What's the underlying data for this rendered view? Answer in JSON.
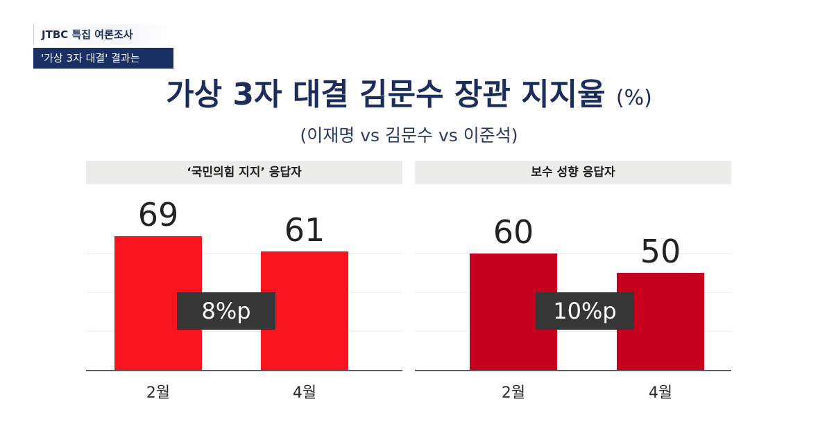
{
  "tag": {
    "line1": "JTBC 특집 여론조사",
    "line2": "'가상 3자 대결' 결과는"
  },
  "title": {
    "main": "가상 3자 대결 김문수 장관 지지율",
    "unit": "(%)"
  },
  "subtitle": "(이재명 vs 김문수 vs 이준석)",
  "colors": {
    "panel1_bar": "#f7141e",
    "panel2_bar": "#c8001f",
    "title": "#1c2d5c"
  },
  "chart_data": [
    {
      "type": "bar",
      "title": "‘국민의힘 지지’ 응답자",
      "categories": [
        "2월",
        "4월"
      ],
      "values": [
        69,
        61
      ],
      "value_labels": [
        "69",
        "61"
      ],
      "annotation": "8%p",
      "ylim": [
        0,
        100
      ]
    },
    {
      "type": "bar",
      "title": "보수 성향 응답자",
      "categories": [
        "2월",
        "4월"
      ],
      "values": [
        60,
        50
      ],
      "value_labels": [
        "60",
        "50"
      ],
      "annotation": "10%p",
      "ylim": [
        0,
        100
      ]
    }
  ]
}
